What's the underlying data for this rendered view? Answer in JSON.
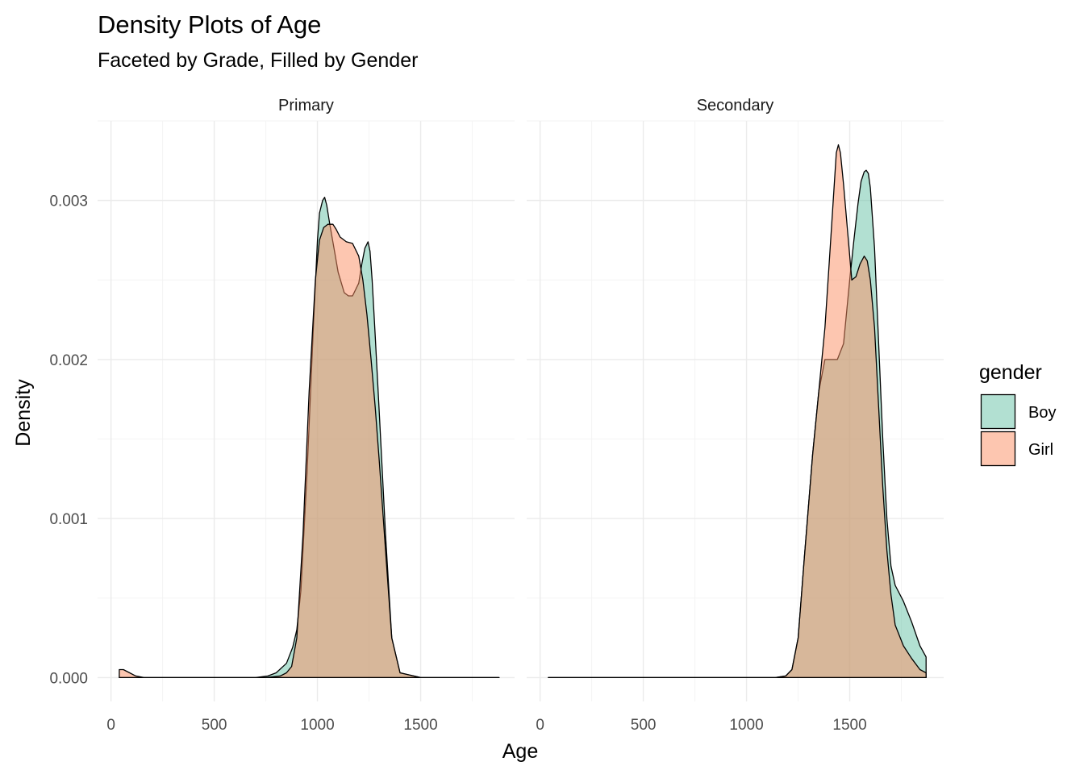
{
  "chart_data": {
    "type": "area",
    "title": "Density Plots of Age",
    "subtitle": "Faceted by Grade, Filled by Gender",
    "xlabel": "Age",
    "ylabel": "Density",
    "xlim": [
      -65,
      1955
    ],
    "ylim": [
      -0.00015,
      0.0035
    ],
    "x_ticks": [
      0,
      500,
      1000,
      1500
    ],
    "x_tick_labels": [
      "0",
      "500",
      "1000",
      "1500"
    ],
    "y_ticks": [
      0,
      0.001,
      0.002,
      0.003
    ],
    "y_tick_labels": [
      "0.000",
      "0.001",
      "0.002",
      "0.003"
    ],
    "grid": true,
    "legend": {
      "title": "gender",
      "position": "right",
      "entries": [
        "Boy",
        "Girl"
      ]
    },
    "colors": {
      "Boy": "#66c2a5",
      "Girl": "#fc8d62",
      "outline": "#000000",
      "grid": "#ebebeb"
    },
    "fill_opacity": 0.5,
    "panels": [
      {
        "label": "Primary",
        "series": [
          {
            "name": "Boy",
            "x": [
              40,
              150,
              300,
              500,
              700,
              760,
              800,
              850,
              880,
              900,
              920,
              950,
              980,
              1000,
              1010,
              1025,
              1035,
              1045,
              1060,
              1080,
              1100,
              1130,
              1150,
              1170,
              1200,
              1215,
              1230,
              1245,
              1255,
              1265,
              1280,
              1300,
              1330,
              1360,
              1400,
              1500,
              1700,
              1880
            ],
            "y": [
              0,
              0,
              0,
              0,
              0,
              1e-05,
              3e-05,
              9e-05,
              0.00019,
              0.0003,
              0.00055,
              0.0013,
              0.0022,
              0.00275,
              0.00292,
              0.003,
              0.00302,
              0.00297,
              0.00285,
              0.0027,
              0.00255,
              0.00242,
              0.0024,
              0.0024,
              0.00248,
              0.0026,
              0.0027,
              0.00274,
              0.00268,
              0.0025,
              0.00215,
              0.00165,
              0.0009,
              0.00025,
              3e-05,
              0,
              0,
              0
            ]
          },
          {
            "name": "Girl",
            "x": [
              40,
              60,
              90,
              120,
              160,
              300,
              500,
              750,
              820,
              850,
              875,
              900,
              930,
              960,
              990,
              1010,
              1030,
              1050,
              1075,
              1090,
              1110,
              1140,
              1170,
              1200,
              1220,
              1240,
              1260,
              1280,
              1300,
              1330,
              1360,
              1400,
              1500,
              1700,
              1880
            ],
            "y": [
              5e-05,
              5e-05,
              3e-05,
              1e-05,
              0,
              0,
              0,
              0,
              1e-05,
              3e-05,
              7e-05,
              0.00025,
              0.0009,
              0.0018,
              0.0025,
              0.00275,
              0.00283,
              0.00285,
              0.00285,
              0.00282,
              0.00277,
              0.00274,
              0.00273,
              0.00265,
              0.0025,
              0.00228,
              0.002,
              0.0017,
              0.00135,
              0.0008,
              0.00025,
              3e-05,
              0,
              0,
              0
            ]
          }
        ]
      },
      {
        "label": "Secondary",
        "series": [
          {
            "name": "Boy",
            "x": [
              40,
              500,
              1000,
              1140,
              1190,
              1220,
              1250,
              1280,
              1320,
              1350,
              1380,
              1410,
              1440,
              1470,
              1500,
              1520,
              1540,
              1555,
              1570,
              1580,
              1590,
              1600,
              1620,
              1640,
              1660,
              1680,
              1700,
              1720,
              1760,
              1800,
              1840,
              1870
            ],
            "y": [
              0,
              0,
              0,
              0,
              1e-05,
              5e-05,
              0.00025,
              0.00075,
              0.0014,
              0.0018,
              0.002,
              0.002,
              0.002,
              0.0021,
              0.0025,
              0.00275,
              0.00298,
              0.00312,
              0.00318,
              0.00319,
              0.00317,
              0.00308,
              0.0027,
              0.0021,
              0.0015,
              0.001,
              0.0007,
              0.00058,
              0.00048,
              0.00035,
              0.0002,
              0.00013
            ]
          },
          {
            "name": "Girl",
            "x": [
              40,
              500,
              1000,
              1140,
              1190,
              1220,
              1250,
              1280,
              1320,
              1350,
              1380,
              1400,
              1420,
              1435,
              1445,
              1455,
              1470,
              1490,
              1510,
              1530,
              1550,
              1570,
              1585,
              1600,
              1620,
              1640,
              1660,
              1680,
              1700,
              1720,
              1760,
              1800,
              1840,
              1870
            ],
            "y": [
              0,
              0,
              0,
              0,
              1e-05,
              5e-05,
              0.00025,
              0.00075,
              0.0014,
              0.0018,
              0.0022,
              0.0026,
              0.003,
              0.0033,
              0.00335,
              0.0033,
              0.0031,
              0.0028,
              0.0025,
              0.00252,
              0.0026,
              0.00265,
              0.00262,
              0.0025,
              0.0022,
              0.0017,
              0.0012,
              0.0008,
              0.00052,
              0.00033,
              0.0002,
              0.00012,
              5e-05,
              3e-05
            ]
          }
        ]
      }
    ]
  }
}
